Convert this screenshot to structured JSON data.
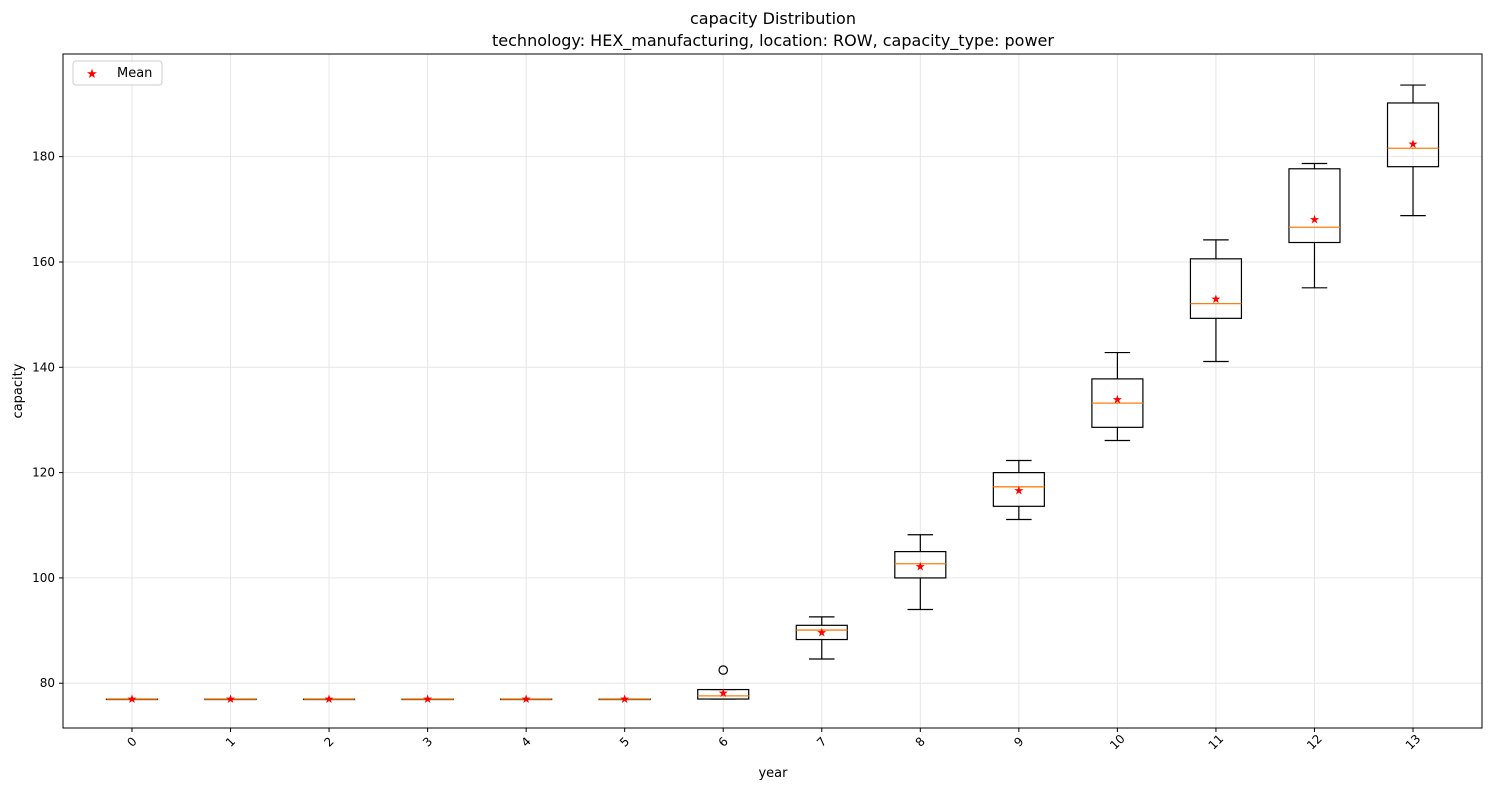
{
  "chart_data": {
    "type": "box",
    "title": "capacity Distribution",
    "subtitle": "technology: HEX_manufacturing, location: ROW, capacity_type: power",
    "xlabel": "year",
    "ylabel": "capacity",
    "ylim": [
      71.5,
      199.5
    ],
    "yticks": [
      80,
      100,
      120,
      140,
      160,
      180
    ],
    "categories": [
      "0",
      "1",
      "2",
      "3",
      "4",
      "5",
      "6",
      "7",
      "8",
      "9",
      "10",
      "11",
      "12",
      "13"
    ],
    "x_tick_rotation": 45,
    "grid": true,
    "legend": {
      "placement": "top-left",
      "entries": [
        "Mean"
      ]
    },
    "colors": {
      "box": "#000000",
      "median": "#ff7f0e",
      "mean": "#ff0000",
      "grid": "#e6e6e6"
    },
    "boxes": [
      {
        "whisker_low": 77.0,
        "q1": 77.0,
        "median": 77.0,
        "q3": 77.0,
        "whisker_high": 77.0,
        "mean": 77.0,
        "outliers": []
      },
      {
        "whisker_low": 77.0,
        "q1": 77.0,
        "median": 77.0,
        "q3": 77.0,
        "whisker_high": 77.0,
        "mean": 77.0,
        "outliers": []
      },
      {
        "whisker_low": 77.0,
        "q1": 77.0,
        "median": 77.0,
        "q3": 77.0,
        "whisker_high": 77.0,
        "mean": 77.0,
        "outliers": []
      },
      {
        "whisker_low": 77.0,
        "q1": 77.0,
        "median": 77.0,
        "q3": 77.0,
        "whisker_high": 77.0,
        "mean": 77.0,
        "outliers": []
      },
      {
        "whisker_low": 77.0,
        "q1": 77.0,
        "median": 77.0,
        "q3": 77.0,
        "whisker_high": 77.0,
        "mean": 77.0,
        "outliers": []
      },
      {
        "whisker_low": 77.0,
        "q1": 77.0,
        "median": 77.0,
        "q3": 77.0,
        "whisker_high": 77.0,
        "mean": 77.0,
        "outliers": []
      },
      {
        "whisker_low": 77.0,
        "q1": 77.0,
        "median": 77.6,
        "q3": 78.8,
        "whisker_high": 78.8,
        "mean": 78.1,
        "outliers": [
          82.5
        ]
      },
      {
        "whisker_low": 84.6,
        "q1": 88.3,
        "median": 90.1,
        "q3": 91.0,
        "whisker_high": 92.6,
        "mean": 89.6,
        "outliers": []
      },
      {
        "whisker_low": 94.0,
        "q1": 100.0,
        "median": 102.7,
        "q3": 105.0,
        "whisker_high": 108.2,
        "mean": 102.2,
        "outliers": []
      },
      {
        "whisker_low": 111.1,
        "q1": 113.6,
        "median": 117.3,
        "q3": 120.0,
        "whisker_high": 122.3,
        "mean": 116.6,
        "outliers": []
      },
      {
        "whisker_low": 126.1,
        "q1": 128.6,
        "median": 133.2,
        "q3": 137.8,
        "whisker_high": 142.8,
        "mean": 133.9,
        "outliers": []
      },
      {
        "whisker_low": 141.1,
        "q1": 149.3,
        "median": 152.1,
        "q3": 160.6,
        "whisker_high": 164.2,
        "mean": 153.0,
        "outliers": []
      },
      {
        "whisker_low": 155.1,
        "q1": 163.7,
        "median": 166.6,
        "q3": 177.7,
        "whisker_high": 178.7,
        "mean": 168.1,
        "outliers": []
      },
      {
        "whisker_low": 168.8,
        "q1": 178.1,
        "median": 181.6,
        "q3": 190.2,
        "whisker_high": 193.6,
        "mean": 182.4,
        "outliers": []
      }
    ]
  }
}
